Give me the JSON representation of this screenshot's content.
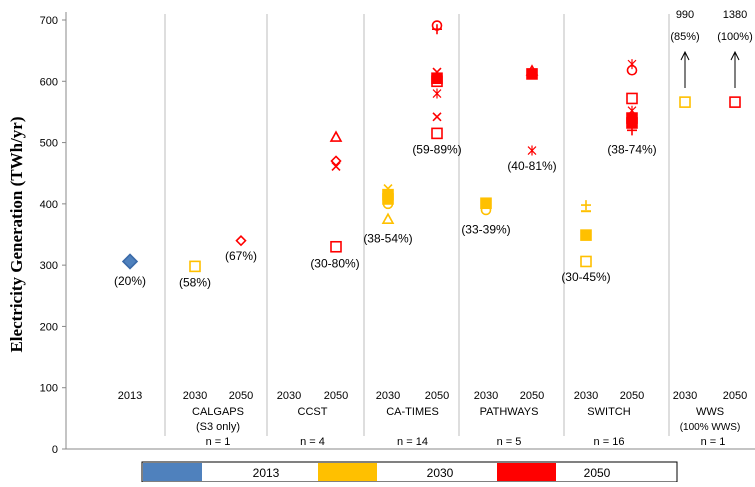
{
  "chart_data": {
    "type": "scatter",
    "ylabel": "Electricity Generation (TWh/yr)",
    "ylim": [
      0,
      700
    ],
    "yticks": [
      0,
      100,
      200,
      300,
      400,
      500,
      600,
      700
    ],
    "legend": {
      "placement": "bottom",
      "entries": [
        {
          "label": "2013",
          "color": "#4f81bd"
        },
        {
          "label": "2030",
          "color": "#ffc000"
        },
        {
          "label": "2050",
          "color": "#ff0000"
        }
      ]
    },
    "groups": [
      {
        "name": "",
        "n_label": "",
        "cols": [
          "2013"
        ]
      },
      {
        "name": "CALGAPS",
        "sub": "(S3 only)",
        "n_label": "n = 1",
        "cols": [
          "2030",
          "2050"
        ]
      },
      {
        "name": "CCST",
        "sub": "",
        "n_label": "n = 4",
        "cols": [
          "2030",
          "2050"
        ]
      },
      {
        "name": "CA-TIMES",
        "sub": "",
        "n_label": "n = 14",
        "cols": [
          "2030",
          "2050"
        ]
      },
      {
        "name": "PATHWAYS",
        "sub": "",
        "n_label": "n = 5",
        "cols": [
          "2030",
          "2050"
        ]
      },
      {
        "name": "SWITCH",
        "sub": "",
        "n_label": "n = 16",
        "cols": [
          "2030",
          "2050"
        ]
      },
      {
        "name": "WWS",
        "sub": "(100% WWS)",
        "n_label": "n = 1",
        "cols": [
          "2030",
          "2050"
        ]
      }
    ],
    "points": [
      {
        "col": 0,
        "year": "2013",
        "marker": "diamond-filled",
        "y": 306
      },
      {
        "col": 1,
        "year": "2030",
        "marker": "square",
        "y": 298
      },
      {
        "col": 2,
        "year": "2050",
        "marker": "diamond",
        "y": 340
      },
      {
        "col": 4,
        "year": "2050",
        "marker": "triangle",
        "y": 509
      },
      {
        "col": 4,
        "year": "2050",
        "marker": "diamond",
        "y": 470
      },
      {
        "col": 4,
        "year": "2050",
        "marker": "x",
        "y": 461
      },
      {
        "col": 4,
        "year": "2050",
        "marker": "square",
        "y": 330
      },
      {
        "col": 5,
        "year": "2030",
        "marker": "x",
        "y": 425
      },
      {
        "col": 5,
        "year": "2030",
        "marker": "square-filled",
        "y": 415
      },
      {
        "col": 5,
        "year": "2030",
        "marker": "square-filled",
        "y": 408
      },
      {
        "col": 5,
        "year": "2030",
        "marker": "circle",
        "y": 400
      },
      {
        "col": 5,
        "year": "2030",
        "marker": "triangle",
        "y": 375
      },
      {
        "col": 6,
        "year": "2050",
        "marker": "circle",
        "y": 691
      },
      {
        "col": 6,
        "year": "2050",
        "marker": "plus",
        "y": 685
      },
      {
        "col": 6,
        "year": "2050",
        "marker": "x",
        "y": 615
      },
      {
        "col": 6,
        "year": "2050",
        "marker": "square-filled",
        "y": 605
      },
      {
        "col": 6,
        "year": "2050",
        "marker": "square",
        "y": 600
      },
      {
        "col": 6,
        "year": "2050",
        "marker": "star",
        "y": 580
      },
      {
        "col": 6,
        "year": "2050",
        "marker": "x",
        "y": 542
      },
      {
        "col": 6,
        "year": "2050",
        "marker": "square",
        "y": 515
      },
      {
        "col": 7,
        "year": "2030",
        "marker": "x",
        "y": 403
      },
      {
        "col": 7,
        "year": "2030",
        "marker": "square-filled",
        "y": 401
      },
      {
        "col": 7,
        "year": "2030",
        "marker": "circle",
        "y": 390
      },
      {
        "col": 8,
        "year": "2050",
        "marker": "triangle",
        "y": 617
      },
      {
        "col": 8,
        "year": "2050",
        "marker": "square-filled",
        "y": 612
      },
      {
        "col": 8,
        "year": "2050",
        "marker": "star",
        "y": 487
      },
      {
        "col": 9,
        "year": "2030",
        "marker": "plus",
        "y": 398
      },
      {
        "col": 9,
        "year": "2030",
        "marker": "dash",
        "y": 388
      },
      {
        "col": 9,
        "year": "2030",
        "marker": "square-filled",
        "y": 349
      },
      {
        "col": 9,
        "year": "2030",
        "marker": "square",
        "y": 306
      },
      {
        "col": 10,
        "year": "2050",
        "marker": "star",
        "y": 628
      },
      {
        "col": 10,
        "year": "2050",
        "marker": "circle",
        "y": 618
      },
      {
        "col": 10,
        "year": "2050",
        "marker": "square",
        "y": 572
      },
      {
        "col": 10,
        "year": "2050",
        "marker": "star",
        "y": 552
      },
      {
        "col": 10,
        "year": "2050",
        "marker": "square-filled",
        "y": 540
      },
      {
        "col": 10,
        "year": "2050",
        "marker": "square-filled",
        "y": 532
      },
      {
        "col": 10,
        "year": "2050",
        "marker": "plus",
        "y": 520
      },
      {
        "col": 11,
        "year": "2030",
        "marker": "square",
        "y": 566,
        "offscale_value": "990",
        "offscale_pct": "(85%)"
      },
      {
        "col": 12,
        "year": "2050",
        "marker": "square",
        "y": 566,
        "offscale_value": "1380",
        "offscale_pct": "(100%)"
      }
    ],
    "annotations": [
      {
        "col": 0,
        "text": "(20%)",
        "y": 268
      },
      {
        "col": 1,
        "text": "(58%)",
        "y": 265
      },
      {
        "col": 2,
        "text": "(67%)",
        "y": 308
      },
      {
        "col": 4,
        "text": "(30-80%)",
        "y": 296
      },
      {
        "col": 5,
        "text": "(38-54%)",
        "y": 337
      },
      {
        "col": 6,
        "text": "(59-89%)",
        "y": 482
      },
      {
        "col": 7,
        "text": "(33-39%)",
        "y": 352
      },
      {
        "col": 8,
        "text": "(40-81%)",
        "y": 455
      },
      {
        "col": 9,
        "text": "(30-45%)",
        "y": 274
      },
      {
        "col": 10,
        "text": "(38-74%)",
        "y": 482
      }
    ]
  }
}
